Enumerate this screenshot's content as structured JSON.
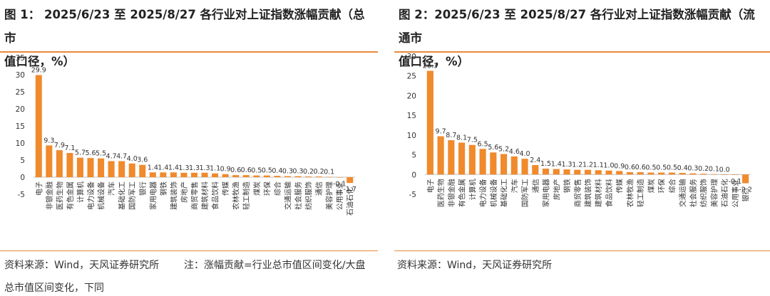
{
  "figures": [
    {
      "title_line1": "图 1： 2025/6/23 至 2025/8/27 各行业对上证指数涨幅贡献（总市",
      "title_line2": "值口径，%）"
    },
    {
      "title_line1": "图 2：2025/6/23 至 2025/8/27 各行业对上证指数涨幅贡献（流通市",
      "title_line2": "值口径，%）"
    }
  ],
  "source_left": "资料来源：Wind，天风证券研究所",
  "note_left_line1": "注：涨幅贡献=行业总市值区间变化/大盘",
  "note_left_line2": "总市值区间变化，下同",
  "source_right": "资料来源：Wind，天风证券研究所",
  "colors": {
    "bar": "#f08a2c",
    "rule": "#e88a3a",
    "axis": "#bfbfbf"
  },
  "chart_data": [
    {
      "type": "bar",
      "title": "2025/6/23 至 2025/8/27 各行业对上证指数涨幅贡献（总市值口径，%）",
      "ylim": [
        -5,
        35
      ],
      "yticks": [
        "-5",
        "0",
        "5",
        "10",
        "15",
        "20",
        "25",
        "30",
        "35"
      ],
      "categories": [
        "电子",
        "非银金融",
        "医药生物",
        "有色金属",
        "计算机",
        "电力设备",
        "机械设备",
        "汽车",
        "基础化工",
        "国防军工",
        "银行",
        "家用电器",
        "钢铁",
        "建筑装饰",
        "房地产",
        "商贸零售",
        "建筑材料",
        "食品饮料",
        "传媒",
        "农林牧渔",
        "轻工制造",
        "煤炭",
        "环保",
        "综合",
        "交通运输",
        "社会服务",
        "纺织服饰",
        "通信",
        "美容护理",
        "公用事业",
        "石油石化"
      ],
      "values": [
        29.9,
        9.3,
        7.9,
        7.1,
        5.7,
        5.6,
        5.5,
        4.7,
        4.7,
        4.0,
        3.6,
        1.4,
        1.4,
        1.4,
        1.3,
        1.3,
        1.3,
        1.1,
        0.9,
        0.6,
        0.6,
        0.5,
        0.5,
        0.4,
        0.3,
        0.3,
        0.2,
        0.2,
        0.1,
        -0.1,
        -1.7
      ],
      "labels": [
        "29.9",
        "9.3",
        "7.9",
        "7.1",
        "5.7",
        "5.6",
        "5.5",
        "4.7",
        "4.7",
        "4.0",
        "3.6",
        "1.4",
        "1.4",
        "1.4",
        "1.3",
        "1.3",
        "1.3",
        "1.1",
        "0.9",
        "0.6",
        "0.6",
        "0.5",
        "0.5",
        "0.4",
        "0.3",
        "0.3",
        "0.2",
        "0.2",
        "0.1",
        "-0.1",
        "-1.7"
      ]
    },
    {
      "type": "bar",
      "title": "2025/6/23 至 2025/8/27 各行业对上证指数涨幅贡献（流通市值口径，%）",
      "ylim": [
        -5,
        30
      ],
      "yticks": [
        "-5",
        "0",
        "5",
        "10",
        "15",
        "20",
        "25",
        "30"
      ],
      "categories": [
        "电子",
        "医药生物",
        "非银金融",
        "有色金属",
        "计算机",
        "电力设备",
        "机械设备",
        "基础化工",
        "汽车",
        "国防军工",
        "通信",
        "家用电器",
        "房地产",
        "钢铁",
        "商贸零售",
        "建筑装饰",
        "建筑材料",
        "食品饮料",
        "传媒",
        "农林牧渔",
        "轻工制造",
        "煤炭",
        "环保",
        "综合",
        "交通运输",
        "社会服务",
        "纺织服饰",
        "美容护理",
        "石油石化",
        "公用事业",
        "银行"
      ],
      "values": [
        26.3,
        9.7,
        8.7,
        8.1,
        7.5,
        6.5,
        5.6,
        5.2,
        4.6,
        4.0,
        2.4,
        1.5,
        1.4,
        1.3,
        1.2,
        1.2,
        1.1,
        1.0,
        0.9,
        0.6,
        0.6,
        0.5,
        0.5,
        0.5,
        0.4,
        0.3,
        0.2,
        0.1,
        0.0,
        -0.1,
        -2.2
      ],
      "labels": [
        "26.3",
        "9.7",
        "8.7",
        "8.1",
        "7.5",
        "6.5",
        "5.6",
        "5.2",
        "4.6",
        "4.0",
        "2.4",
        "1.5",
        "1.4",
        "1.3",
        "1.2",
        "1.2",
        "1.1",
        "1.0",
        "0.9",
        "0.6",
        "0.6",
        "0.5",
        "0.5",
        "0.5",
        "0.4",
        "0.3",
        "0.2",
        "0.1",
        "0.0",
        "-0.1",
        "-2.2"
      ]
    }
  ]
}
